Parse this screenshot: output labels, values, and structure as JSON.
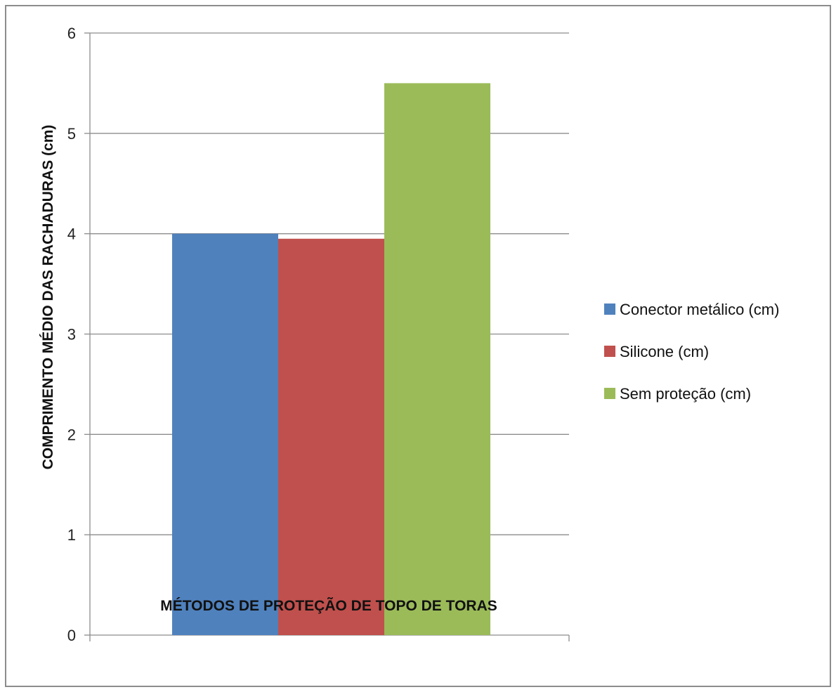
{
  "chart_data": {
    "type": "bar",
    "title": "",
    "xlabel": "MÉTODOS DE PROTEÇÃO DE TOPO DE TORAS",
    "ylabel": "COMPRIMENTO MÉDIO DAS RACHADURAS (cm)",
    "ylim": [
      0,
      6
    ],
    "yticks": [
      0,
      1,
      2,
      3,
      4,
      5,
      6
    ],
    "ytick_labels": [
      "0",
      "1",
      "2",
      "3",
      "4",
      "5",
      "6"
    ],
    "grid": true,
    "legend_position": "right",
    "categories": [
      ""
    ],
    "series": [
      {
        "name": "Conector metálico (cm)",
        "values": [
          4.0
        ],
        "color": "#4f81bd"
      },
      {
        "name": "Silicone (cm)",
        "values": [
          3.95
        ],
        "color": "#c0504d"
      },
      {
        "name": "Sem proteção (cm)",
        "values": [
          5.5
        ],
        "color": "#9bbb59"
      }
    ]
  }
}
